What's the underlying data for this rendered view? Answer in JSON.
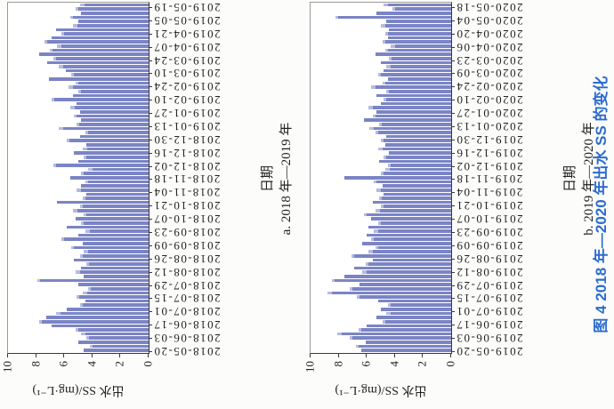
{
  "figure": {
    "caption": "图 4  2018 年—2020 年出水 SS 的变化",
    "caption_color": "#2b6bd0",
    "bar_color": "#7b84c4",
    "bar_tip_color": "#b4bbdf",
    "background_color": "#fcfcfa",
    "orientation": "figure rotated 90 degrees counterclockwise on page"
  },
  "chart_data": [
    {
      "type": "bar",
      "title": "a. 2018 年—2019 年",
      "xlabel": "日期",
      "ylabel": "出水 SS/(mg·L⁻¹)",
      "ylim": [
        0,
        10
      ],
      "yticks": [
        0,
        2,
        4,
        6,
        8,
        10
      ],
      "grid": false,
      "legend": "none",
      "tick_labels": [
        "2018-05-20",
        "2018-06-03",
        "2018-06-17",
        "2018-07-01",
        "2018-07-15",
        "2018-07-29",
        "2018-08-12",
        "2018-08-26",
        "2018-09-09",
        "2018-09-23",
        "2018-10-07",
        "2018-10-21",
        "2018-11-04",
        "2018-11-18",
        "2018-12-02",
        "2018-12-16",
        "2018-12-30",
        "2019-01-13",
        "2019-01-27",
        "2019-02-10",
        "2019-02-24",
        "2019-03-10",
        "2019-03-24",
        "2019-04-07",
        "2019-04-21",
        "2019-05-05",
        "2019-05-19"
      ],
      "values": [
        4.6,
        4.2,
        5.0,
        4.4,
        4.8,
        5.2,
        6.9,
        7.8,
        7.3,
        6.6,
        5.8,
        4.9,
        4.5,
        5.1,
        4.7,
        4.3,
        5.0,
        7.9,
        4.6,
        5.2,
        4.8,
        4.4,
        5.3,
        4.9,
        4.6,
        5.5,
        4.7,
        6.2,
        5.0,
        4.5,
        5.8,
        4.8,
        5.2,
        4.6,
        5.4,
        4.9,
        6.5,
        4.7,
        4.4,
        5.1,
        4.8,
        4.5,
        5.6,
        4.8,
        4.3,
        6.8,
        5.0,
        4.6,
        5.3,
        4.7,
        4.4,
        5.8,
        4.9,
        4.5,
        6.4,
        5.1,
        4.8,
        5.3,
        4.9,
        5.6,
        5.1,
        6.9,
        5.4,
        5.0,
        5.7,
        5.2,
        7.1,
        5.5,
        5.9,
        6.4,
        7.2,
        6.8,
        7.8,
        7.0,
        6.5,
        7.4,
        6.9,
        6.2,
        6.6,
        5.4,
        5.0,
        5.6,
        4.8,
        5.2,
        4.9
      ]
    },
    {
      "type": "bar",
      "title": "b. 2019 年—2020 年",
      "xlabel": "日期",
      "ylabel": "出水 SS/(mg·L⁻¹)",
      "ylim": [
        0,
        10
      ],
      "yticks": [
        0,
        2,
        4,
        6,
        8,
        10
      ],
      "grid": false,
      "legend": "none",
      "tick_labels": [
        "2019-05-20",
        "2019-06-03",
        "2019-06-17",
        "2019-07-01",
        "2019-07-15",
        "2019-07-29",
        "2019-08-12",
        "2019-08-26",
        "2019-09-09",
        "2019-09-23",
        "2019-10-07",
        "2019-10-21",
        "2019-11-04",
        "2019-11-18",
        "2019-12-02",
        "2019-12-16",
        "2019-12-30",
        "2020-01-13",
        "2020-01-27",
        "2020-02-10",
        "2020-02-24",
        "2020-03-09",
        "2020-03-23",
        "2020-04-06",
        "2020-04-20",
        "2020-05-04",
        "2020-05-18"
      ],
      "values": [
        6.4,
        6.8,
        6.1,
        7.2,
        8.1,
        6.6,
        6.0,
        4.9,
        5.3,
        4.6,
        5.0,
        4.5,
        5.2,
        6.7,
        8.8,
        7.2,
        6.5,
        8.5,
        7.6,
        6.3,
        6.9,
        6.1,
        5.6,
        7.1,
        5.9,
        5.4,
        6.3,
        5.7,
        6.0,
        5.5,
        5.9,
        5.2,
        5.7,
        6.2,
        5.4,
        5.0,
        5.6,
        5.1,
        4.8,
        5.3,
        4.9,
        5.5,
        7.6,
        5.0,
        4.7,
        4.5,
        5.1,
        4.8,
        4.4,
        5.2,
        4.7,
        5.0,
        4.6,
        5.4,
        5.8,
        5.1,
        6.2,
        5.6,
        5.3,
        5.9,
        5.0,
        4.8,
        5.3,
        4.6,
        5.7,
        4.9,
        4.5,
        5.2,
        4.8,
        4.6,
        5.0,
        4.4,
        5.4,
        4.7,
        4.3,
        4.9,
        4.5,
        4.7,
        4.4,
        5.0,
        4.6,
        8.2,
        5.3,
        4.2,
        4.8
      ]
    }
  ]
}
